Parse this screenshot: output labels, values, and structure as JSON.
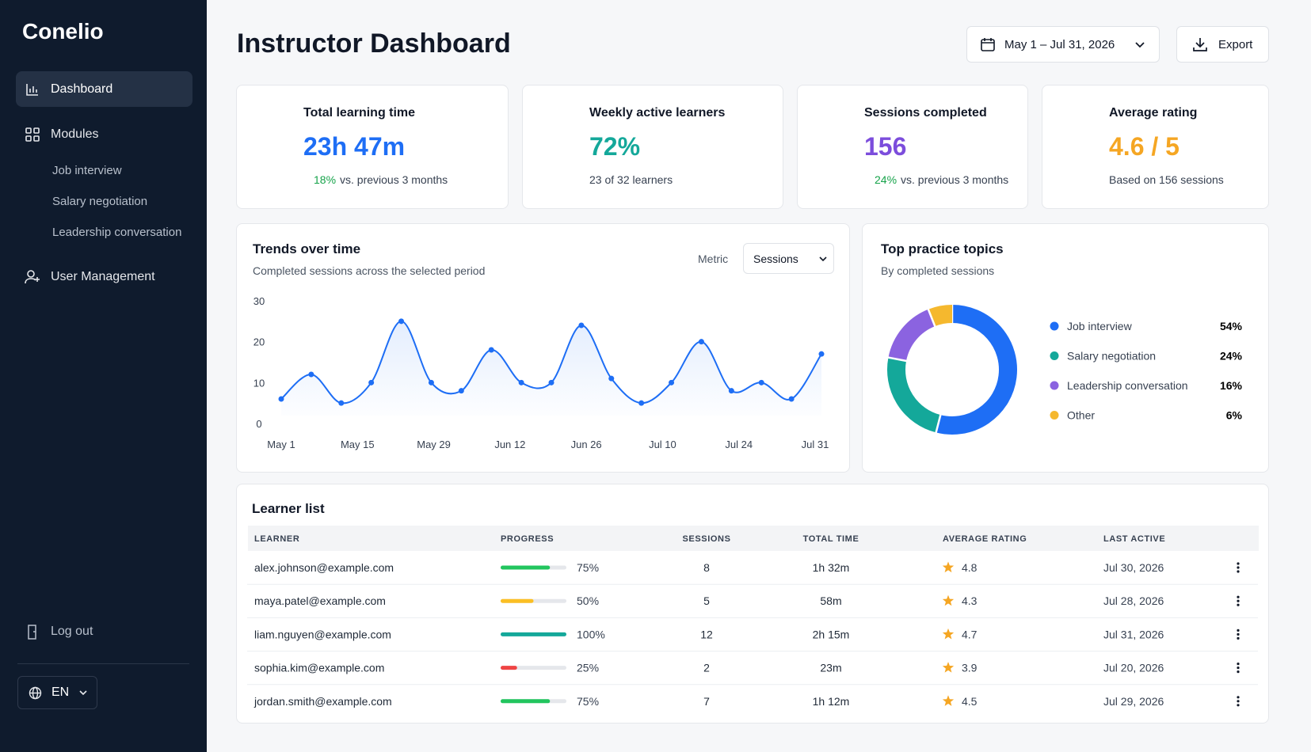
{
  "sidebar": {
    "brand": "Conelio",
    "nav": [
      {
        "label": "Dashboard"
      },
      {
        "label": "Modules",
        "children": [
          "Job interview",
          "Salary negotiation",
          "Leadership conversation"
        ]
      },
      {
        "label": "User Management"
      }
    ],
    "logout": "Log out",
    "language": "EN"
  },
  "header": {
    "title": "Instructor Dashboard",
    "date_range": "May 1 – Jul 31, 2026",
    "export": "Export"
  },
  "kpis": [
    {
      "label": "Total learning time",
      "value": "23h 47m",
      "change": "18%",
      "note": "vs. previous 3 months",
      "color": "#1e6ef5"
    },
    {
      "label": "Weekly active learners",
      "value": "72%",
      "note": "23 of 32 learners",
      "color": "#14a89a"
    },
    {
      "label": "Sessions completed",
      "value": "156",
      "change": "24%",
      "note": "vs. previous 3 months",
      "color": "#7c4ddc"
    },
    {
      "label": "Average rating",
      "value": "4.6 / 5",
      "note": "Based on 156 sessions",
      "color": "#f5a623"
    }
  ],
  "trend_chart": {
    "type": "line",
    "title": "Trends over time",
    "subtitle": "Completed sessions across the selected period",
    "metric_label": "Metric",
    "metric": "Sessions",
    "xtick_labels": [
      "May 1",
      "May 15",
      "May 29",
      "Jun 12",
      "Jun 26",
      "Jul 10",
      "Jul 24",
      "Jul 31"
    ],
    "values": [
      6,
      12,
      5,
      10,
      25,
      10,
      8,
      18,
      10,
      10,
      24,
      11,
      5,
      10,
      20,
      8,
      10,
      6,
      17
    ],
    "color": "#1e6ef5",
    "ylim": [
      0,
      30
    ],
    "yticks": [
      0,
      10,
      20,
      30
    ]
  },
  "topics_chart": {
    "type": "donut",
    "title": "Top practice topics",
    "subtitle": "By completed sessions",
    "categories": [
      "Job interview",
      "Salary negotiation",
      "Leadership conversation",
      "Other"
    ],
    "values": [
      54,
      24,
      16,
      6
    ],
    "value_labels": [
      "54%",
      "24%",
      "16%",
      "6%"
    ],
    "colors": [
      "#1e6ef5",
      "#14a89a",
      "#8b63e0",
      "#f5b82e"
    ]
  },
  "learners": {
    "title": "Learner list",
    "columns": [
      "LEARNER",
      "PROGRESS",
      "SESSIONS",
      "TOTAL TIME",
      "AVERAGE RATING",
      "LAST ACTIVE"
    ],
    "rows": [
      {
        "email": "alex.johnson@example.com",
        "progress": 75,
        "progress_label": "75%",
        "progress_color": "#22c55e",
        "sessions": 8,
        "total_time": "1h 32m",
        "rating": 4.8,
        "last_active": "Jul 30, 2026"
      },
      {
        "email": "maya.patel@example.com",
        "progress": 50,
        "progress_label": "50%",
        "progress_color": "#fbbf24",
        "sessions": 5,
        "total_time": "58m",
        "rating": 4.3,
        "last_active": "Jul 28, 2026"
      },
      {
        "email": "liam.nguyen@example.com",
        "progress": 100,
        "progress_label": "100%",
        "progress_color": "#14a89a",
        "sessions": 12,
        "total_time": "2h 15m",
        "rating": 4.7,
        "last_active": "Jul 31, 2026"
      },
      {
        "email": "sophia.kim@example.com",
        "progress": 25,
        "progress_label": "25%",
        "progress_color": "#ef4444",
        "sessions": 2,
        "total_time": "23m",
        "rating": 3.9,
        "last_active": "Jul 20, 2026"
      },
      {
        "email": "jordan.smith@example.com",
        "progress": 75,
        "progress_label": "75%",
        "progress_color": "#22c55e",
        "sessions": 7,
        "total_time": "1h 12m",
        "rating": 4.5,
        "last_active": "Jul 29, 2026"
      }
    ]
  }
}
